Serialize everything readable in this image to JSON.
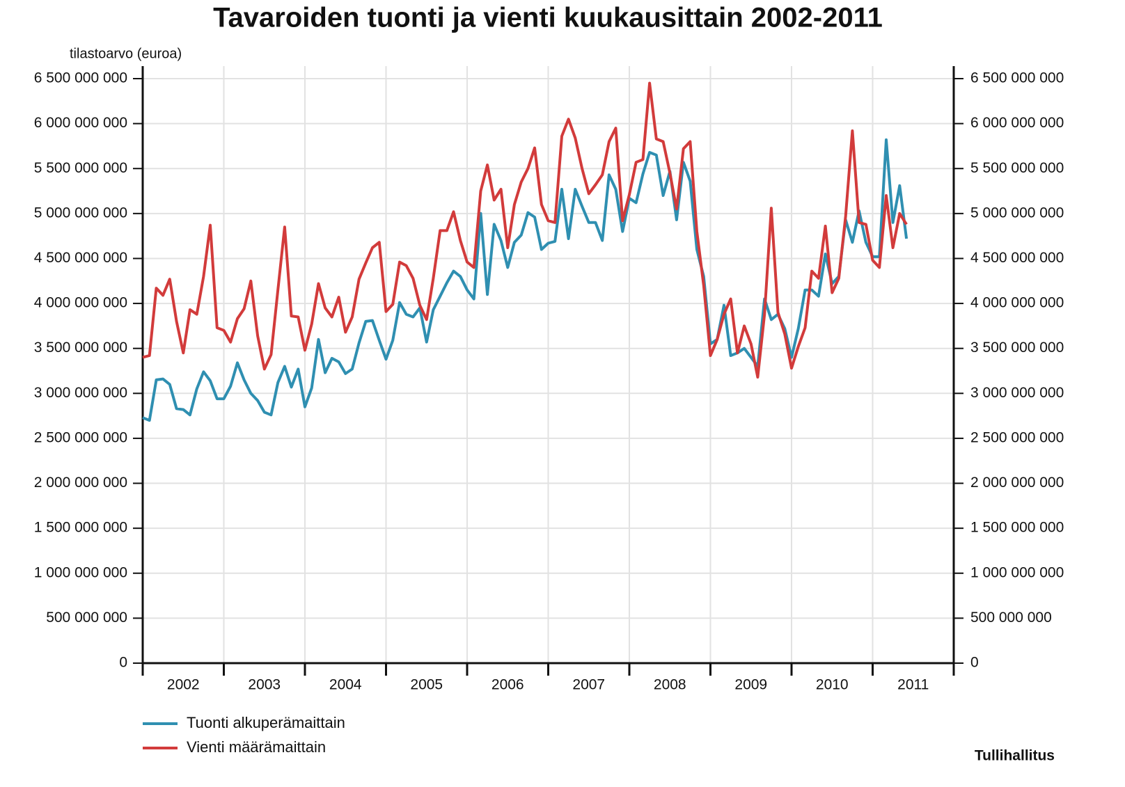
{
  "chart_data": {
    "type": "line",
    "title": "Tavaroiden tuonti ja vienti kuukausittain 2002-2011",
    "y_axis_label": "tilastoarvo (euroa)",
    "source": "Tullihallitus",
    "categories": [
      "2002",
      "2003",
      "2004",
      "2005",
      "2006",
      "2007",
      "2008",
      "2009",
      "2010",
      "2011"
    ],
    "xlim": [
      2002,
      2012
    ],
    "xticks": [
      2002,
      2003,
      2004,
      2005,
      2006,
      2007,
      2008,
      2009,
      2010,
      2011,
      2012
    ],
    "x": [
      2002,
      2002.083,
      2002.167,
      2002.25,
      2002.333,
      2002.417,
      2002.5,
      2002.583,
      2002.667,
      2002.75,
      2002.833,
      2002.917,
      2003,
      2003.083,
      2003.167,
      2003.25,
      2003.333,
      2003.417,
      2003.5,
      2003.583,
      2003.667,
      2003.75,
      2003.833,
      2003.917,
      2004,
      2004.083,
      2004.167,
      2004.25,
      2004.333,
      2004.417,
      2004.5,
      2004.583,
      2004.667,
      2004.75,
      2004.833,
      2004.917,
      2005,
      2005.083,
      2005.167,
      2005.25,
      2005.333,
      2005.417,
      2005.5,
      2005.583,
      2005.667,
      2005.75,
      2005.833,
      2005.917,
      2006,
      2006.083,
      2006.167,
      2006.25,
      2006.333,
      2006.417,
      2006.5,
      2006.583,
      2006.667,
      2006.75,
      2006.833,
      2006.917,
      2007,
      2007.083,
      2007.167,
      2007.25,
      2007.333,
      2007.417,
      2007.5,
      2007.583,
      2007.667,
      2007.75,
      2007.833,
      2007.917,
      2008,
      2008.083,
      2008.167,
      2008.25,
      2008.333,
      2008.417,
      2008.5,
      2008.583,
      2008.667,
      2008.75,
      2008.833,
      2008.917,
      2009,
      2009.083,
      2009.167,
      2009.25,
      2009.333,
      2009.417,
      2009.5,
      2009.583,
      2009.667,
      2009.75,
      2009.833,
      2009.917,
      2010,
      2010.083,
      2010.167,
      2010.25,
      2010.333,
      2010.417,
      2010.5,
      2010.583,
      2010.667,
      2010.75,
      2010.833,
      2010.917,
      2011,
      2011.083,
      2011.167,
      2011.25,
      2011.333,
      2011.417
    ],
    "ylim": [
      0,
      6500000000
    ],
    "yticks": [
      0,
      {
        "value": 500000000,
        "label": "500 000 000"
      },
      {
        "value": 1000000000,
        "label": "1 000 000 000"
      },
      {
        "value": 1500000000,
        "label": "1 500 000 000"
      },
      {
        "value": 2000000000,
        "label": "2 000 000 000"
      },
      {
        "value": 2500000000,
        "label": "2 500 000 000"
      },
      {
        "value": 3000000000,
        "label": "3 000 000 000"
      },
      {
        "value": 3500000000,
        "label": "3 500 000 000"
      },
      {
        "value": 4000000000,
        "label": "4 000 000 000"
      },
      {
        "value": 4500000000,
        "label": "4 500 000 000"
      },
      {
        "value": 5000000000,
        "label": "5 000 000 000"
      },
      {
        "value": 5500000000,
        "label": "5 500 000 000"
      },
      {
        "value": 6000000000,
        "label": "6 000 000 000"
      },
      {
        "value": 6500000000,
        "label": "6 500 000 000"
      }
    ],
    "y2lim": [
      0,
      6500000000
    ],
    "y2ticks": [
      0,
      {
        "value": 500000000,
        "label": "500 000 000"
      },
      {
        "value": 1000000000,
        "label": "1 000 000 000"
      },
      {
        "value": 1500000000,
        "label": "1 500 000 000"
      },
      {
        "value": 2000000000,
        "label": "2 000 000 000"
      },
      {
        "value": 2500000000,
        "label": "2 500 000 000"
      },
      {
        "value": 3000000000,
        "label": "3 000 000 000"
      },
      {
        "value": 3500000000,
        "label": "3 500 000 000"
      },
      {
        "value": 4000000000,
        "label": "4 000 000 000"
      },
      {
        "value": 4500000000,
        "label": "4 500 000 000"
      },
      {
        "value": 5000000000,
        "label": "5 000 000 000"
      },
      {
        "value": 5500000000,
        "label": "5 500 000 000"
      },
      {
        "value": 6000000000,
        "label": "6 000 000 000"
      },
      {
        "value": 6500000000,
        "label": "6 500 000 000"
      }
    ],
    "grid": true,
    "legend": "bottom-left",
    "series": [
      {
        "name": "Tuonti alkuperämaittain",
        "color": "#2f8fb1",
        "values": [
          2730000000,
          2700000000,
          3150000000,
          3160000000,
          3100000000,
          2830000000,
          2820000000,
          2760000000,
          3050000000,
          3240000000,
          3140000000,
          2940000000,
          2940000000,
          3080000000,
          3340000000,
          3150000000,
          3000000000,
          2920000000,
          2790000000,
          2760000000,
          3120000000,
          3300000000,
          3070000000,
          3270000000,
          2850000000,
          3060000000,
          3600000000,
          3230000000,
          3390000000,
          3350000000,
          3220000000,
          3270000000,
          3560000000,
          3800000000,
          3810000000,
          3590000000,
          3380000000,
          3590000000,
          4010000000,
          3880000000,
          3850000000,
          3950000000,
          3570000000,
          3930000000,
          4080000000,
          4230000000,
          4360000000,
          4300000000,
          4150000000,
          4050000000,
          5000000000,
          4100000000,
          4880000000,
          4700000000,
          4400000000,
          4680000000,
          4760000000,
          5010000000,
          4960000000,
          4600000000,
          4670000000,
          4690000000,
          5270000000,
          4720000000,
          5270000000,
          5080000000,
          4900000000,
          4900000000,
          4700000000,
          5430000000,
          5270000000,
          4800000000,
          5170000000,
          5120000000,
          5440000000,
          5680000000,
          5650000000,
          5200000000,
          5470000000,
          4930000000,
          5570000000,
          5360000000,
          4600000000,
          4300000000,
          3550000000,
          3600000000,
          3980000000,
          3420000000,
          3450000000,
          3500000000,
          3400000000,
          3300000000,
          4050000000,
          3820000000,
          3880000000,
          3720000000,
          3400000000,
          3720000000,
          4150000000,
          4150000000,
          4080000000,
          4550000000,
          4220000000,
          4300000000,
          4930000000,
          4680000000,
          5030000000,
          4680000000,
          4520000000,
          4520000000,
          5820000000,
          4900000000,
          5310000000,
          4720000000
        ]
      },
      {
        "name": "Vienti määrämaittain",
        "color": "#d23b3b",
        "values": [
          3400000000,
          3420000000,
          4170000000,
          4090000000,
          4270000000,
          3800000000,
          3450000000,
          3930000000,
          3880000000,
          4300000000,
          4870000000,
          3730000000,
          3700000000,
          3570000000,
          3830000000,
          3940000000,
          4250000000,
          3640000000,
          3270000000,
          3430000000,
          4150000000,
          4850000000,
          3860000000,
          3850000000,
          3480000000,
          3770000000,
          4220000000,
          3950000000,
          3850000000,
          4070000000,
          3680000000,
          3850000000,
          4270000000,
          4450000000,
          4620000000,
          4680000000,
          3910000000,
          3990000000,
          4460000000,
          4420000000,
          4280000000,
          3980000000,
          3820000000,
          4280000000,
          4810000000,
          4810000000,
          5020000000,
          4700000000,
          4460000000,
          4400000000,
          5250000000,
          5540000000,
          5150000000,
          5270000000,
          4620000000,
          5100000000,
          5350000000,
          5500000000,
          5730000000,
          5100000000,
          4920000000,
          4900000000,
          5860000000,
          6050000000,
          5840000000,
          5500000000,
          5220000000,
          5320000000,
          5430000000,
          5800000000,
          5950000000,
          4920000000,
          5210000000,
          5570000000,
          5600000000,
          6450000000,
          5830000000,
          5800000000,
          5450000000,
          5050000000,
          5720000000,
          5800000000,
          4800000000,
          4200000000,
          3420000000,
          3600000000,
          3880000000,
          4050000000,
          3450000000,
          3750000000,
          3550000000,
          3180000000,
          3880000000,
          5060000000,
          3900000000,
          3660000000,
          3280000000,
          3520000000,
          3730000000,
          4360000000,
          4280000000,
          4860000000,
          4120000000,
          4280000000,
          4970000000,
          5920000000,
          4900000000,
          4880000000,
          4480000000,
          4400000000,
          5200000000,
          4620000000,
          5000000000,
          4880000000
        ]
      }
    ]
  }
}
